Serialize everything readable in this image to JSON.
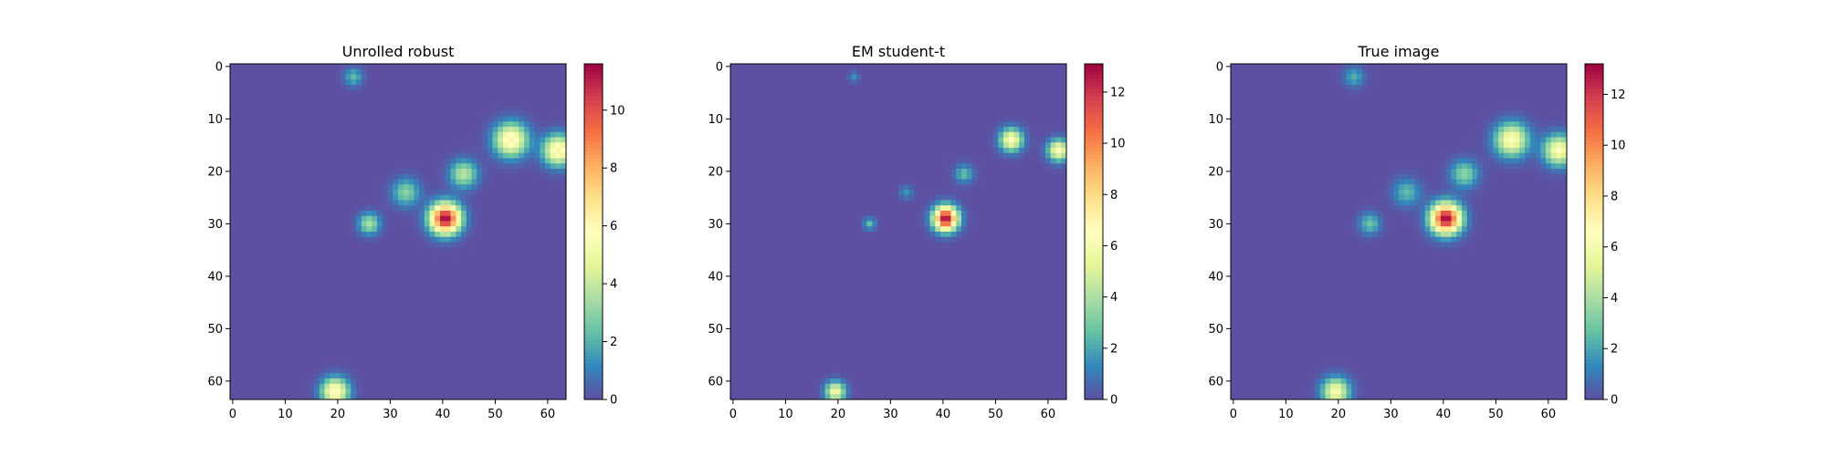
{
  "chart_data": [
    {
      "type": "heatmap",
      "title": "Unrolled robust",
      "colormap": "Spectral_r",
      "grid": false,
      "x_ticks": [
        "0",
        "10",
        "20",
        "30",
        "40",
        "50",
        "60"
      ],
      "y_ticks": [
        "0",
        "10",
        "20",
        "30",
        "40",
        "50",
        "60"
      ],
      "xlim": [
        -0.5,
        63.5
      ],
      "ylim": [
        63.5,
        -0.5
      ],
      "colorbar": {
        "range": [
          0,
          11.6
        ],
        "ticks": [
          "0",
          "2",
          "4",
          "6",
          "8",
          "10"
        ]
      },
      "blobs": [
        {
          "x": 23,
          "y": 2,
          "peak": 2.2,
          "sigma": 1.2
        },
        {
          "x": 53,
          "y": 14,
          "peak": 6.3,
          "sigma": 2.2
        },
        {
          "x": 62,
          "y": 16,
          "peak": 6.3,
          "sigma": 2.0
        },
        {
          "x": 44,
          "y": 20.5,
          "peak": 3.8,
          "sigma": 1.8
        },
        {
          "x": 33,
          "y": 24,
          "peak": 2.9,
          "sigma": 1.8
        },
        {
          "x": 26,
          "y": 30,
          "peak": 3.5,
          "sigma": 1.4
        },
        {
          "x": 40.5,
          "y": 29,
          "peak": 11.6,
          "sigma": 2.0
        },
        {
          "x": 19.5,
          "y": 62,
          "peak": 6.2,
          "sigma": 1.8
        }
      ]
    },
    {
      "type": "heatmap",
      "title": "EM student-t",
      "colormap": "Spectral_r",
      "grid": false,
      "x_ticks": [
        "0",
        "10",
        "20",
        "30",
        "40",
        "50",
        "60"
      ],
      "y_ticks": [
        "0",
        "10",
        "20",
        "30",
        "40",
        "50",
        "60"
      ],
      "xlim": [
        -0.5,
        63.5
      ],
      "ylim": [
        63.5,
        -0.5
      ],
      "colorbar": {
        "range": [
          0,
          13.1
        ],
        "ticks": [
          "0",
          "2",
          "4",
          "6",
          "8",
          "10",
          "12"
        ]
      },
      "blobs": [
        {
          "x": 23,
          "y": 2,
          "peak": 1.5,
          "sigma": 0.7
        },
        {
          "x": 53,
          "y": 14,
          "peak": 6.5,
          "sigma": 1.5
        },
        {
          "x": 62,
          "y": 16,
          "peak": 6.5,
          "sigma": 1.4
        },
        {
          "x": 44,
          "y": 20.5,
          "peak": 2.6,
          "sigma": 1.2
        },
        {
          "x": 33,
          "y": 24,
          "peak": 1.6,
          "sigma": 0.9
        },
        {
          "x": 26,
          "y": 30,
          "peak": 2.6,
          "sigma": 0.8
        },
        {
          "x": 40.5,
          "y": 29,
          "peak": 13.1,
          "sigma": 1.6
        },
        {
          "x": 19.5,
          "y": 62,
          "peak": 6.0,
          "sigma": 1.3
        }
      ]
    },
    {
      "type": "heatmap",
      "title": "True image",
      "colormap": "Spectral_r",
      "grid": false,
      "x_ticks": [
        "0",
        "10",
        "20",
        "30",
        "40",
        "50",
        "60"
      ],
      "y_ticks": [
        "0",
        "10",
        "20",
        "30",
        "40",
        "50",
        "60"
      ],
      "xlim": [
        -0.5,
        63.5
      ],
      "ylim": [
        63.5,
        -0.5
      ],
      "colorbar": {
        "range": [
          0,
          13.2
        ],
        "ticks": [
          "0",
          "2",
          "4",
          "6",
          "8",
          "10",
          "12"
        ]
      },
      "blobs": [
        {
          "x": 23,
          "y": 2,
          "peak": 2.2,
          "sigma": 1.3
        },
        {
          "x": 53,
          "y": 14,
          "peak": 6.5,
          "sigma": 2.2
        },
        {
          "x": 62,
          "y": 16,
          "peak": 6.5,
          "sigma": 2.0
        },
        {
          "x": 44,
          "y": 20.5,
          "peak": 3.4,
          "sigma": 1.8
        },
        {
          "x": 33,
          "y": 24,
          "peak": 2.5,
          "sigma": 1.8
        },
        {
          "x": 26,
          "y": 30,
          "peak": 2.8,
          "sigma": 1.4
        },
        {
          "x": 40.5,
          "y": 29,
          "peak": 13.2,
          "sigma": 2.0
        },
        {
          "x": 19.5,
          "y": 62,
          "peak": 6.2,
          "sigma": 1.8
        }
      ]
    }
  ]
}
